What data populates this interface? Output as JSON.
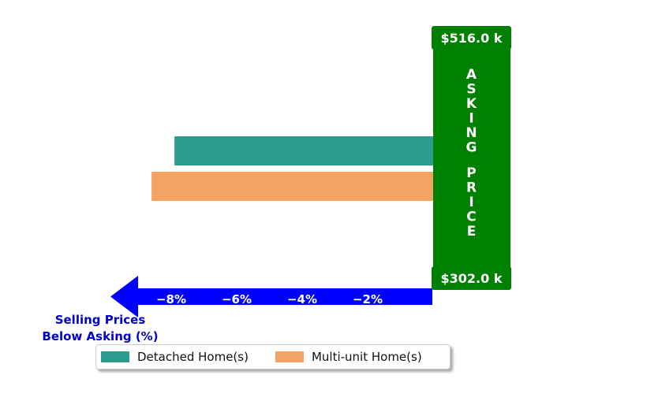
{
  "chart_data": {
    "type": "bar",
    "orientation": "horizontal",
    "series": [
      {
        "name": "Detached Home(s)",
        "value": -7.9,
        "color": "#2a9d8f"
      },
      {
        "name": "Multi-unit Home(s)",
        "value": -8.6,
        "color": "#f4a261"
      }
    ],
    "x_ticks": [
      "−8%",
      "−6%",
      "−4%",
      "−2%"
    ],
    "x_tick_values": [
      -8,
      -6,
      -4,
      -2
    ],
    "xlim": [
      -9.8,
      1.3
    ],
    "xlabel": "Selling Prices\nBelow Asking (%)",
    "asking_price_label": "A S K I N G   P R I C E",
    "asking_price_letters": [
      "A",
      "S",
      "K",
      "I",
      "N",
      "G",
      "",
      "P",
      "R",
      "I",
      "C",
      "E"
    ],
    "price_top": "$516.0 k",
    "price_bottom": "$302.0 k",
    "legend_location": "lower-center",
    "colors": {
      "axis_arrow": "#0000ff",
      "asking_box": "#008000",
      "label_text": "#0000cc"
    }
  }
}
